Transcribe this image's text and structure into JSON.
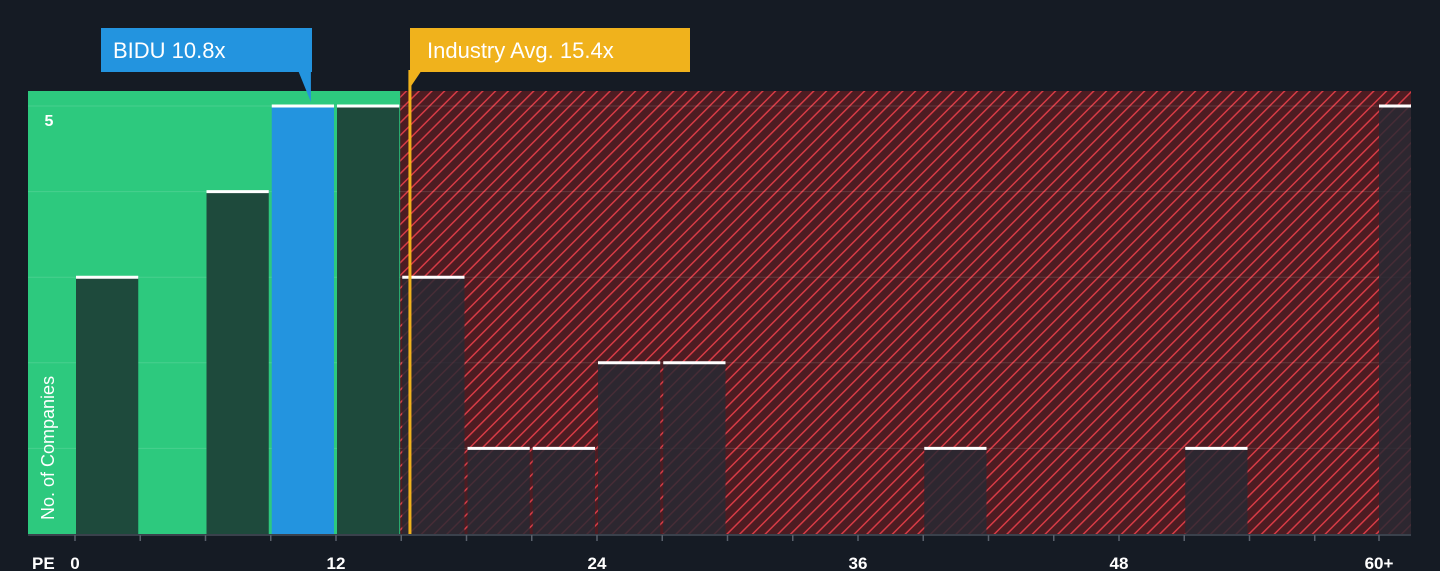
{
  "chart_data": {
    "type": "bar",
    "xlabel": "PE",
    "ylabel": "No. of Companies",
    "x_ticks": [
      "0",
      "12",
      "24",
      "36",
      "48",
      "60+"
    ],
    "y_ticks": [
      "5"
    ],
    "ylim": [
      0,
      5.15
    ],
    "bins": [
      {
        "start": 0,
        "end": 3,
        "count": 3,
        "zone": "fair"
      },
      {
        "start": 3,
        "end": 6,
        "count": 0,
        "zone": "fair"
      },
      {
        "start": 6,
        "end": 9,
        "count": 4,
        "zone": "fair"
      },
      {
        "start": 9,
        "end": 12,
        "count": 5,
        "zone": "highlight"
      },
      {
        "start": 12,
        "end": 15,
        "count": 5,
        "zone": "fair"
      },
      {
        "start": 15,
        "end": 18,
        "count": 3,
        "zone": "expensive"
      },
      {
        "start": 18,
        "end": 21,
        "count": 1,
        "zone": "expensive"
      },
      {
        "start": 21,
        "end": 24,
        "count": 1,
        "zone": "expensive"
      },
      {
        "start": 24,
        "end": 27,
        "count": 2,
        "zone": "expensive"
      },
      {
        "start": 27,
        "end": 30,
        "count": 2,
        "zone": "expensive"
      },
      {
        "start": 30,
        "end": 33,
        "count": 0,
        "zone": "expensive"
      },
      {
        "start": 33,
        "end": 36,
        "count": 0,
        "zone": "expensive"
      },
      {
        "start": 36,
        "end": 39,
        "count": 0,
        "zone": "expensive"
      },
      {
        "start": 39,
        "end": 42,
        "count": 1,
        "zone": "expensive"
      },
      {
        "start": 42,
        "end": 45,
        "count": 0,
        "zone": "expensive"
      },
      {
        "start": 45,
        "end": 48,
        "count": 0,
        "zone": "expensive"
      },
      {
        "start": 48,
        "end": 51,
        "count": 0,
        "zone": "expensive"
      },
      {
        "start": 51,
        "end": 54,
        "count": 1,
        "zone": "expensive"
      },
      {
        "start": 54,
        "end": 57,
        "count": 0,
        "zone": "expensive"
      },
      {
        "start": 57,
        "end": 60,
        "count": 0,
        "zone": "expensive"
      },
      {
        "start": 60,
        "end": 61.5,
        "count": 5,
        "zone": "expensive"
      }
    ],
    "company": {
      "label": "BIDU 10.8x",
      "value": 10.8
    },
    "industry": {
      "label": "Industry Avg. 15.4x",
      "value": 15.4
    },
    "fair_zone_end": 15,
    "colors": {
      "background": "#151b24",
      "fair_zone": "#2dc97e",
      "fair_bar": "#1e4a3c",
      "highlight_bar": "#2394df",
      "expensive_bar": "#262a33",
      "hatch": "#d63b45",
      "hatch_bg": "#4d1c22",
      "industry": "#f0b21c",
      "cap": "#ffffff"
    }
  }
}
